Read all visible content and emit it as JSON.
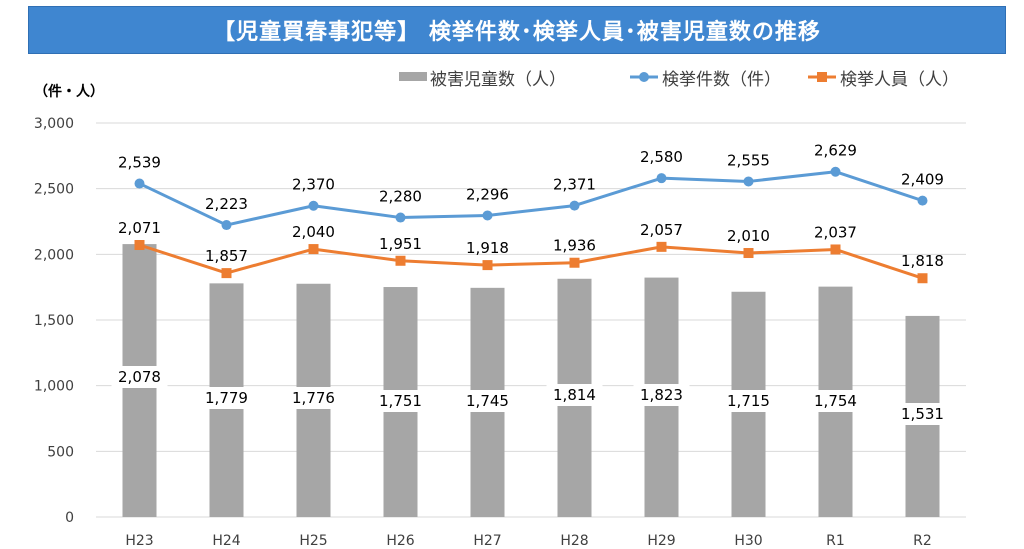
{
  "title": "【児童買春事犯等】 検挙件数･検挙人員･被害児童数の推移",
  "colors": {
    "title_bg": "#3f86d0",
    "bars": "#a6a6a6",
    "cases_line": "#5b9bd5",
    "persons_line": "#ed7d31",
    "grid": "#d9d9d9",
    "text": "#404040"
  },
  "chart_data": {
    "type": "bar+line",
    "unit_label": "（件・人）",
    "categories": [
      "H23",
      "H24",
      "H25",
      "H26",
      "H27",
      "H28",
      "H29",
      "H30",
      "R1",
      "R2"
    ],
    "ylim": [
      0,
      3000
    ],
    "yticks": [
      0,
      500,
      1000,
      1500,
      2000,
      2500,
      3000
    ],
    "ytick_labels": [
      "0",
      "500",
      "1,000",
      "1,500",
      "2,000",
      "2,500",
      "3,000"
    ],
    "grid": true,
    "legend_position": "top-right",
    "series": [
      {
        "name": "被害児童数（人）",
        "type": "bar",
        "color": "#a6a6a6",
        "values": [
          2078,
          1779,
          1776,
          1751,
          1745,
          1814,
          1823,
          1715,
          1754,
          1531
        ],
        "labels": [
          "2,078",
          "1,779",
          "1,776",
          "1,751",
          "1,745",
          "1,814",
          "1,823",
          "1,715",
          "1,754",
          "1,531"
        ]
      },
      {
        "name": "検挙件数（件）",
        "type": "line",
        "marker": "circle",
        "color": "#5b9bd5",
        "values": [
          2539,
          2223,
          2370,
          2280,
          2296,
          2371,
          2580,
          2555,
          2629,
          2409
        ],
        "labels": [
          "2,539",
          "2,223",
          "2,370",
          "2,280",
          "2,296",
          "2,371",
          "2,580",
          "2,555",
          "2,629",
          "2,409"
        ]
      },
      {
        "name": "検挙人員（人）",
        "type": "line",
        "marker": "square",
        "color": "#ed7d31",
        "values": [
          2071,
          1857,
          2040,
          1951,
          1918,
          1936,
          2057,
          2010,
          2037,
          1818
        ],
        "labels": [
          "2,071",
          "1,857",
          "2,040",
          "1,951",
          "1,918",
          "1,936",
          "2,057",
          "2,010",
          "2,037",
          "1,818"
        ]
      }
    ]
  }
}
